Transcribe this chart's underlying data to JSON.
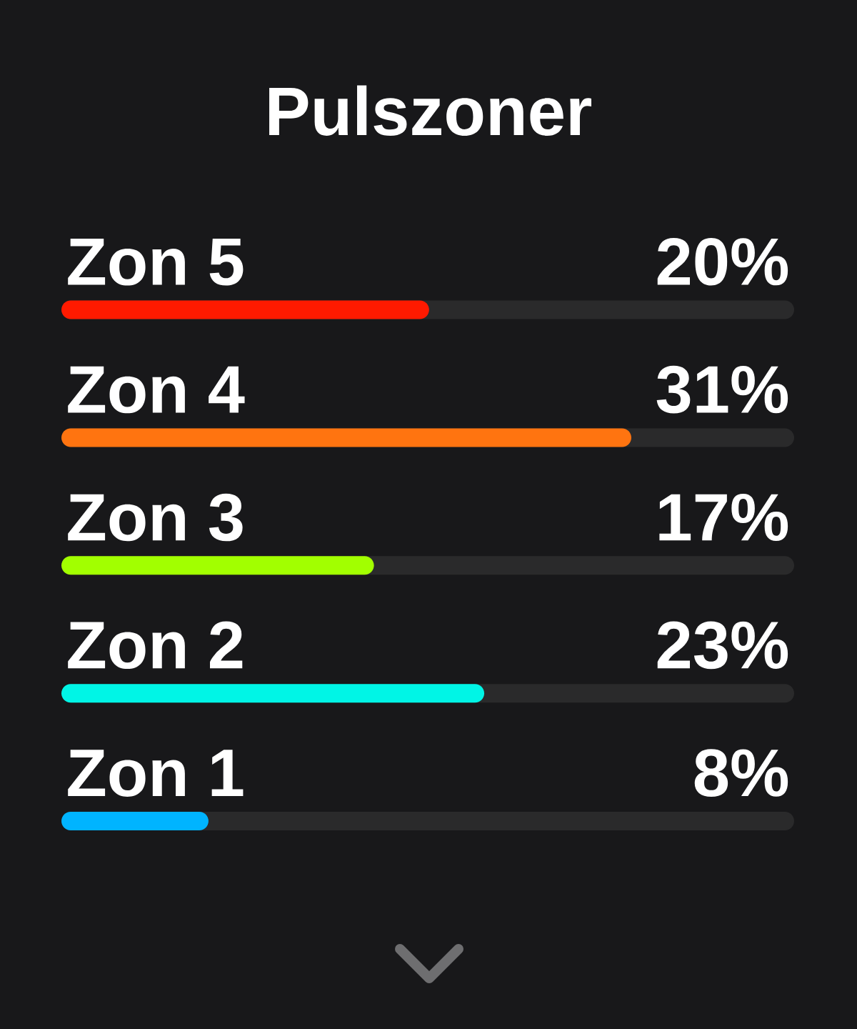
{
  "chart_data": {
    "type": "bar",
    "orientation": "horizontal",
    "title": "Pulszoner",
    "categories": [
      "Zon 5",
      "Zon 4",
      "Zon 3",
      "Zon 2",
      "Zon 1"
    ],
    "values": [
      20,
      31,
      17,
      23,
      8
    ],
    "colors": [
      "#ff1a00",
      "#ff7410",
      "#a2ff00",
      "#00f5e6",
      "#00b4ff"
    ],
    "value_labels": [
      "20%",
      "31%",
      "17%",
      "23%",
      "8%"
    ]
  }
}
